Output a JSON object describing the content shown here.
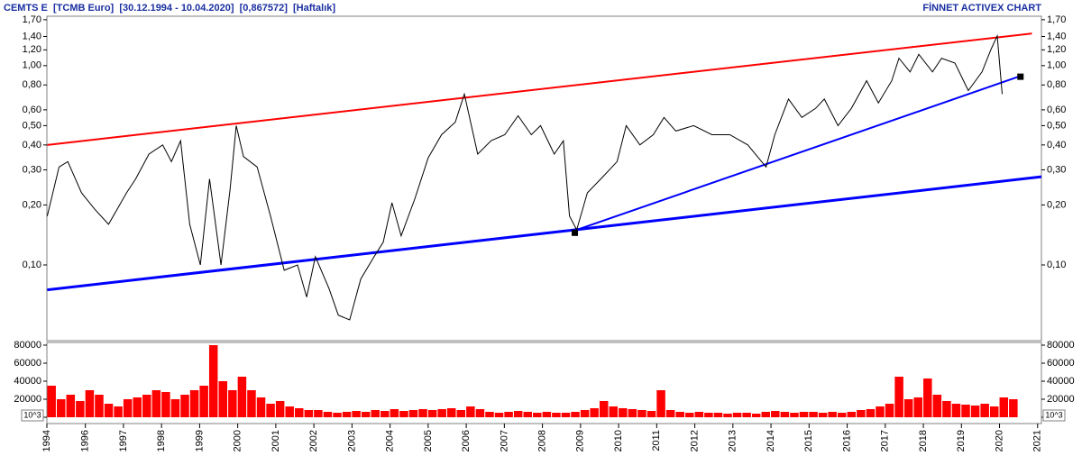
{
  "chart_data": {
    "type": "line",
    "title": "CEMTS E  [TCMB Euro]  [30.12.1994 - 10.04.2020]  [0,867572]  [Haftalık]",
    "source": "FİNNET ACTIVEX CHART",
    "log_scale": true,
    "color": "#000000",
    "x": [
      1995.0,
      1995.31,
      1995.54,
      1995.9,
      1996.25,
      1996.61,
      1997.08,
      1997.32,
      1997.67,
      1998.03,
      1998.26,
      1998.5,
      1998.74,
      1999.02,
      1999.26,
      1999.56,
      1999.8,
      1999.96,
      2000.15,
      2000.51,
      2000.86,
      2001.22,
      2001.57,
      2001.81,
      2002.04,
      2002.4,
      2002.64,
      2002.94,
      2003.23,
      2003.58,
      2003.82,
      2004.05,
      2004.29,
      2004.65,
      2005.0,
      2005.35,
      2005.71,
      2005.95,
      2006.3,
      2006.65,
      2007.01,
      2007.36,
      2007.71,
      2007.95,
      2008.31,
      2008.55,
      2008.71,
      2008.9,
      2009.18,
      2009.61,
      2009.96,
      2010.2,
      2010.56,
      2010.91,
      2011.19,
      2011.5,
      2011.97,
      2012.45,
      2012.92,
      2013.39,
      2013.87,
      2014.1,
      2014.46,
      2014.81,
      2015.17,
      2015.4,
      2015.76,
      2016.11,
      2016.51,
      2016.82,
      2017.17,
      2017.36,
      2017.65,
      2017.88,
      2018.24,
      2018.48,
      2018.83,
      2019.18,
      2019.54,
      2019.78,
      2019.94,
      2020.07
    ],
    "values": [
      0.176,
      0.31,
      0.33,
      0.23,
      0.19,
      0.16,
      0.23,
      0.27,
      0.36,
      0.4,
      0.33,
      0.42,
      0.16,
      0.1,
      0.27,
      0.1,
      0.24,
      0.5,
      0.35,
      0.31,
      0.176,
      0.094,
      0.1,
      0.069,
      0.11,
      0.076,
      0.056,
      0.053,
      0.085,
      0.11,
      0.13,
      0.205,
      0.14,
      0.215,
      0.345,
      0.45,
      0.52,
      0.72,
      0.36,
      0.42,
      0.45,
      0.56,
      0.45,
      0.5,
      0.36,
      0.42,
      0.176,
      0.15,
      0.23,
      0.28,
      0.33,
      0.5,
      0.4,
      0.45,
      0.55,
      0.47,
      0.5,
      0.45,
      0.45,
      0.4,
      0.31,
      0.45,
      0.68,
      0.55,
      0.61,
      0.68,
      0.5,
      0.61,
      0.84,
      0.65,
      0.84,
      1.09,
      0.93,
      1.14,
      0.93,
      1.09,
      1.03,
      0.75,
      0.93,
      1.21,
      1.41,
      0.72
    ],
    "xlim": [
      1994.99,
      2021.1
    ],
    "xticks": [
      {
        "value": 1994.99,
        "label": "1994"
      },
      1996,
      1997,
      1998,
      1999,
      2000,
      2001,
      2002,
      2003,
      2004,
      2005,
      2006,
      2007,
      2008,
      2009,
      2010,
      2011,
      2012,
      2013,
      2014,
      2015,
      2016,
      2017,
      2018,
      2019,
      2020,
      2021
    ],
    "ylim": [
      0.0417,
      1.77
    ],
    "yticks": [
      {
        "value": 0.1,
        "label": "0,10"
      },
      {
        "value": 0.2,
        "label": "0,20"
      },
      {
        "value": 0.3,
        "label": "0,30"
      },
      {
        "value": 0.4,
        "label": "0,40"
      },
      {
        "value": 0.5,
        "label": "0,50"
      },
      {
        "value": 0.6,
        "label": "0,60"
      },
      {
        "value": 0.8,
        "label": "0,80"
      },
      {
        "value": 1.0,
        "label": "1,00"
      },
      {
        "value": 1.2,
        "label": "1,20"
      },
      {
        "value": 1.4,
        "label": "1,40"
      },
      {
        "value": 1.7,
        "label": "1,70"
      }
    ],
    "trendlines": [
      {
        "color": "#ff0000",
        "x": [
          1995.0,
          2020.85
        ],
        "values": [
          0.4,
          1.45
        ]
      },
      {
        "color": "#0000ff",
        "x": [
          1995.0,
          2021.1
        ],
        "values": [
          0.075,
          0.277
        ]
      },
      {
        "color": "#0000ff",
        "x": [
          2008.9,
          2020.5
        ],
        "values": [
          0.15,
          0.88
        ]
      }
    ],
    "markers": {
      "x": [
        2008.85,
        2020.55
      ],
      "values": [
        0.145,
        0.88
      ]
    },
    "volume": {
      "color": "#ff0000",
      "unit": "10^3",
      "ylim": [
        0,
        80000
      ],
      "yticks": [
        0,
        20000,
        40000,
        60000,
        80000
      ],
      "x": [
        1995,
        1995.25,
        1995.5,
        1995.75,
        1996,
        1996.25,
        1996.5,
        1996.75,
        1997,
        1997.25,
        1997.5,
        1997.75,
        1998,
        1998.25,
        1998.5,
        1998.75,
        1999,
        1999.25,
        1999.5,
        1999.75,
        2000,
        2000.25,
        2000.5,
        2000.75,
        2001,
        2001.25,
        2001.5,
        2001.75,
        2002,
        2002.25,
        2002.5,
        2002.75,
        2003,
        2003.25,
        2003.5,
        2003.75,
        2004,
        2004.25,
        2004.5,
        2004.75,
        2005,
        2005.25,
        2005.5,
        2005.75,
        2006,
        2006.25,
        2006.5,
        2006.75,
        2007,
        2007.25,
        2007.5,
        2007.75,
        2008,
        2008.25,
        2008.5,
        2008.75,
        2009,
        2009.25,
        2009.5,
        2009.75,
        2010,
        2010.25,
        2010.5,
        2010.75,
        2011,
        2011.25,
        2011.5,
        2011.75,
        2012,
        2012.25,
        2012.5,
        2012.75,
        2013,
        2013.25,
        2013.5,
        2013.75,
        2014,
        2014.25,
        2014.5,
        2014.75,
        2015,
        2015.25,
        2015.5,
        2015.75,
        2016,
        2016.25,
        2016.5,
        2016.75,
        2017,
        2017.25,
        2017.5,
        2017.75,
        2018,
        2018.25,
        2018.5,
        2018.75,
        2019,
        2019.25,
        2019.5,
        2019.75,
        2020,
        2020.25
      ],
      "values": [
        35000,
        20000,
        25000,
        18000,
        30000,
        25000,
        15000,
        12000,
        20000,
        22000,
        25000,
        30000,
        28000,
        20000,
        25000,
        30000,
        35000,
        80000,
        40000,
        30000,
        45000,
        30000,
        22000,
        15000,
        18000,
        12000,
        10000,
        8000,
        8000,
        6000,
        5000,
        6000,
        7000,
        6000,
        8000,
        7000,
        9000,
        7000,
        8000,
        9000,
        8000,
        9000,
        10000,
        8000,
        12000,
        9000,
        6000,
        5000,
        6000,
        7000,
        6000,
        5000,
        6000,
        5000,
        5000,
        6000,
        8000,
        10000,
        18000,
        12000,
        10000,
        9000,
        8000,
        7000,
        30000,
        8000,
        6000,
        5000,
        6000,
        5000,
        5000,
        4000,
        5000,
        5000,
        4000,
        6000,
        7000,
        6000,
        5000,
        6000,
        6000,
        5000,
        6000,
        5000,
        6000,
        8000,
        9000,
        12000,
        15000,
        45000,
        20000,
        22000,
        43000,
        25000,
        18000,
        15000,
        14000,
        13000,
        15000,
        12000,
        22000,
        20000
      ]
    }
  }
}
